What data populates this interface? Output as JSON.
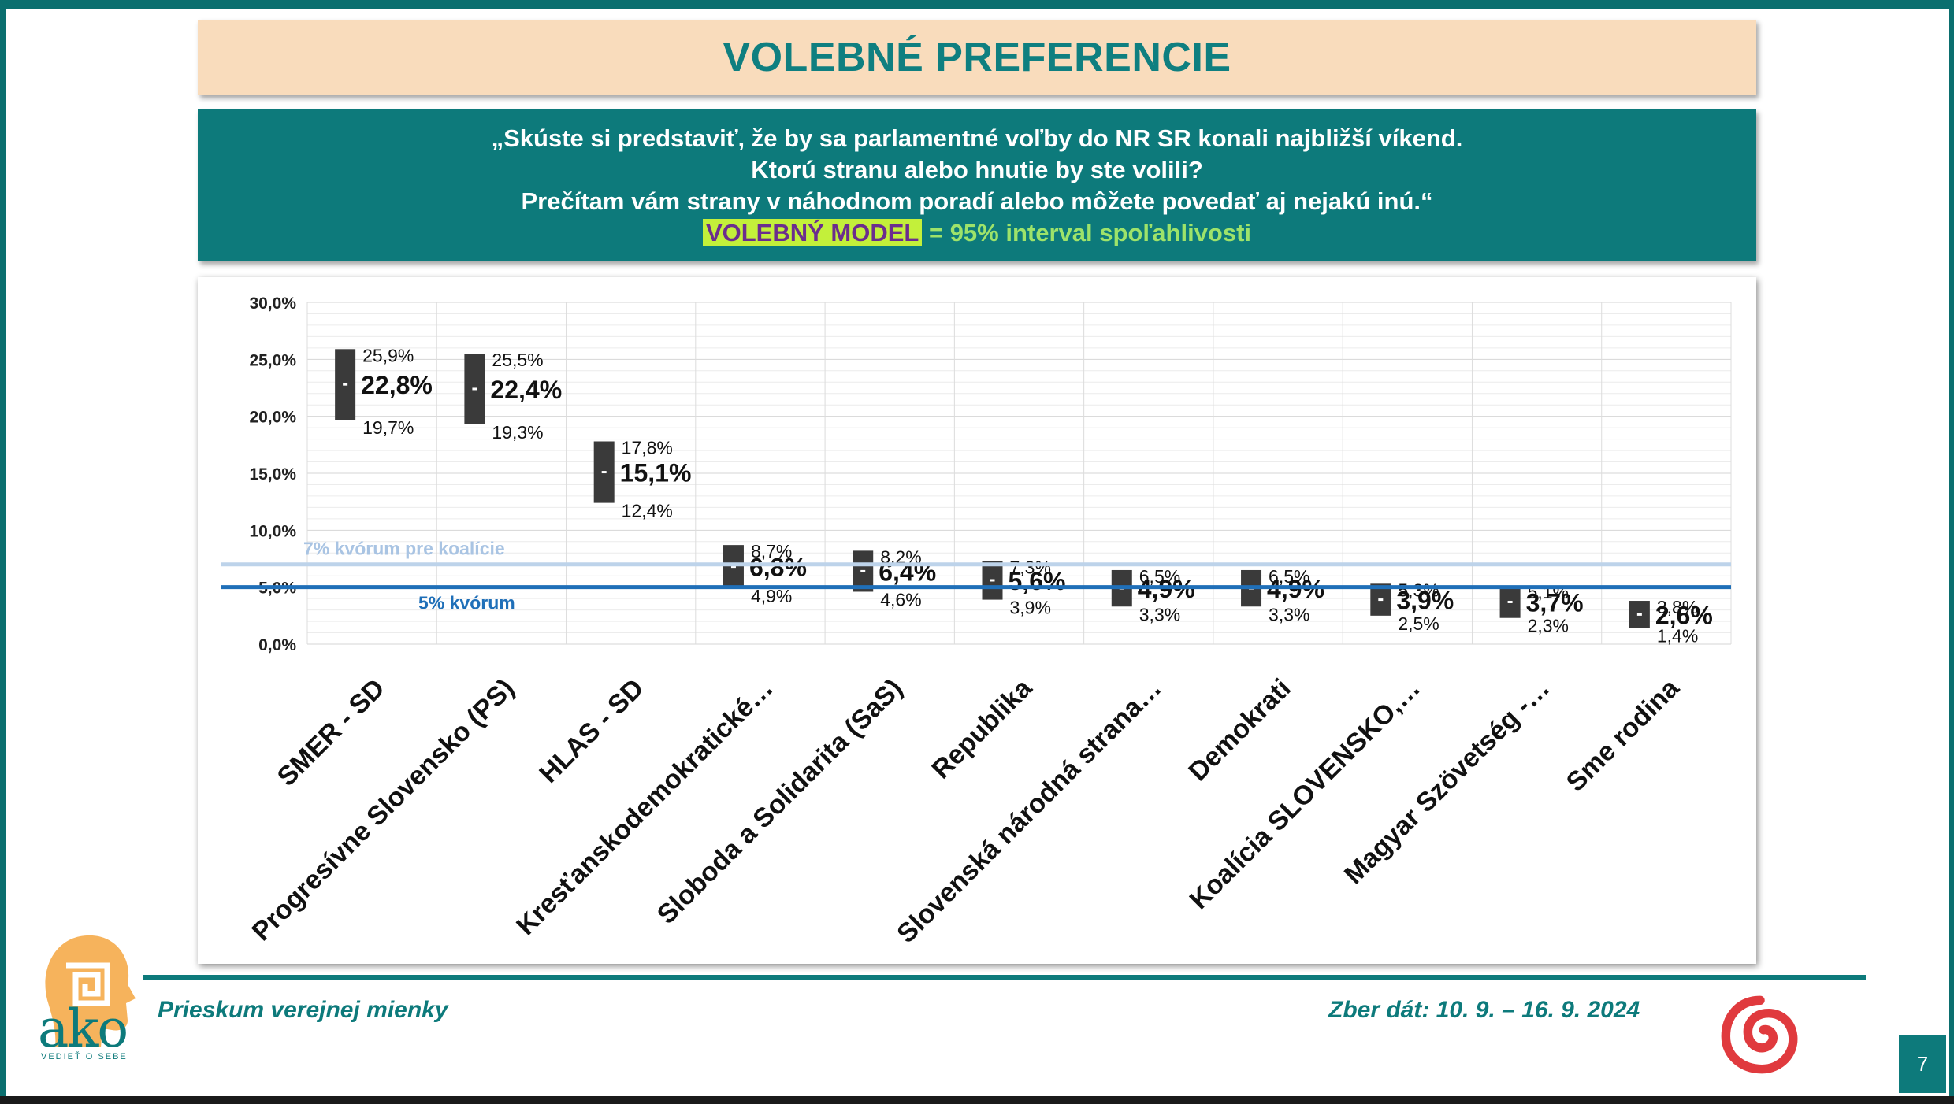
{
  "title": "VOLEBNÉ PREFERENCIE",
  "question": {
    "line1": "„Skúste si predstaviť, že by sa parlamentné voľby do NR SR konali najbližší víkend.",
    "line2": "Ktorú stranu alebo hnutie by ste volili?",
    "line3": "Prečítam vám strany v náhodnom poradí alebo môžete povedať aj nejakú inú.“",
    "model_label": "VOLEBNÝ MODEL",
    "model_rest": " = 95% interval spoľahlivosti"
  },
  "footer": {
    "left": "Prieskum verejnej mienky",
    "right": "Zber dát: 10. 9. – 16. 9. 2024",
    "page": "7",
    "logo_text": "ako",
    "logo_tagline": "VEDIEŤ O SEBE"
  },
  "colors": {
    "teal": "#0d7a7b",
    "bar": "#3a3a3a",
    "line_5": "#1f6fb8",
    "line_7": "#bdd3ea",
    "swirl": "#e03a3e"
  },
  "chart_data": {
    "type": "error-bar",
    "ylim": [
      0,
      30
    ],
    "yticks": [
      "0,0%",
      "5,0%",
      "10,0%",
      "15,0%",
      "20,0%",
      "25,0%",
      "30,0%"
    ],
    "categories": [
      "SMER - SD",
      "Progresívne Slovensko (PS)",
      "HLAS - SD",
      "Kresťanskodemokratické…",
      "Sloboda a Solidarita (SaS)",
      "Republika",
      "Slovenská národná strana…",
      "Demokrati",
      "Koalícia SLOVENSKO,…",
      "Magyar Szövetség -…",
      "Sme rodina"
    ],
    "values": [
      22.8,
      22.4,
      15.1,
      6.8,
      6.4,
      5.6,
      4.9,
      4.9,
      3.9,
      3.7,
      2.6
    ],
    "upper": [
      25.9,
      25.5,
      17.8,
      8.7,
      8.2,
      7.3,
      6.5,
      6.5,
      5.3,
      5.1,
      3.8
    ],
    "lower": [
      19.7,
      19.3,
      12.4,
      4.9,
      4.6,
      3.9,
      3.3,
      3.3,
      2.5,
      2.3,
      1.4
    ],
    "labels": {
      "values": [
        "22,8%",
        "22,4%",
        "15,1%",
        "6,8%",
        "6,4%",
        "5,6%",
        "4,9%",
        "4,9%",
        "3,9%",
        "3,7%",
        "2,6%"
      ],
      "upper": [
        "25,9%",
        "25,5%",
        "17,8%",
        "8,7%",
        "8,2%",
        "7,3%",
        "6,5%",
        "6,5%",
        "5,3%",
        "5,1%",
        "3,8%"
      ],
      "lower": [
        "19,7%",
        "19,3%",
        "12,4%",
        "4,9%",
        "4,6%",
        "3,9%",
        "3,3%",
        "3,3%",
        "2,5%",
        "2,3%",
        "1,4%"
      ]
    },
    "thresholds": [
      {
        "value": 7,
        "label": "7% kvórum pre koalície"
      },
      {
        "value": 5,
        "label": "5% kvórum"
      }
    ],
    "grid": true
  }
}
